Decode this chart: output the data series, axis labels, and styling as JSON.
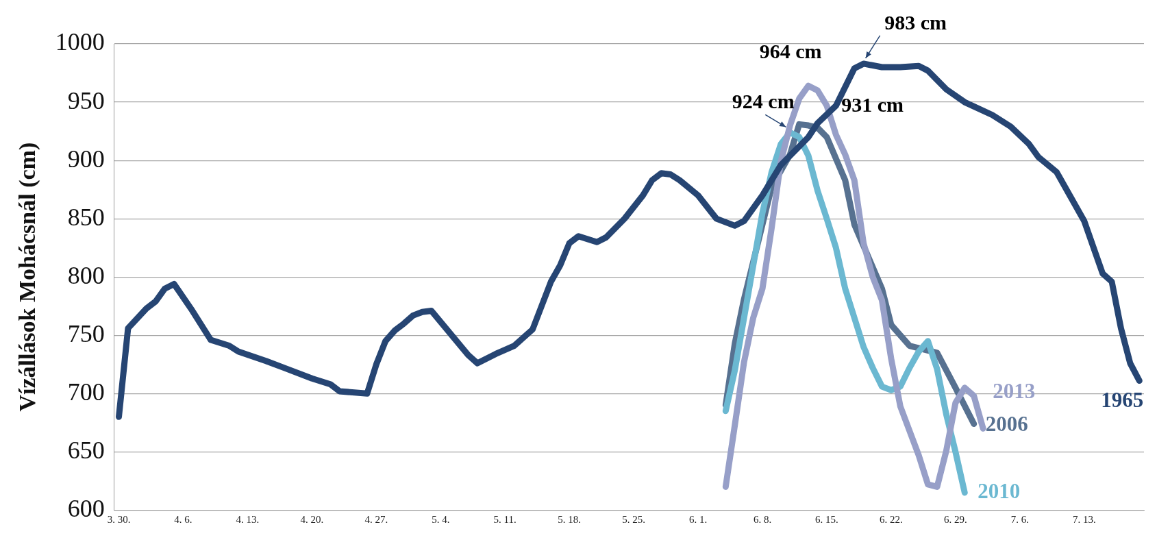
{
  "chart_data": {
    "type": "line",
    "ylabel": "Vízállások Mohácsnál (cm)",
    "categories": [
      "3. 30.",
      null,
      null,
      null,
      null,
      null,
      null,
      "4. 6.",
      null,
      null,
      null,
      null,
      null,
      null,
      "4. 13.",
      null,
      null,
      null,
      null,
      null,
      null,
      "4. 20.",
      null,
      null,
      null,
      null,
      null,
      null,
      "4. 27.",
      null,
      null,
      null,
      null,
      null,
      null,
      "5. 4.",
      null,
      null,
      null,
      null,
      null,
      null,
      "5. 11.",
      null,
      null,
      null,
      null,
      null,
      null,
      "5. 18.",
      null,
      null,
      null,
      null,
      null,
      null,
      "5. 25.",
      null,
      null,
      null,
      null,
      null,
      null,
      "6. 1.",
      null,
      null,
      null,
      null,
      null,
      null,
      "6. 8.",
      null,
      null,
      null,
      null,
      null,
      null,
      "6. 15.",
      null,
      null,
      null,
      null,
      null,
      null,
      "6. 22.",
      null,
      null,
      null,
      null,
      null,
      null,
      "6. 29.",
      null,
      null,
      null,
      null,
      null,
      null,
      "7. 6.",
      null,
      null,
      null,
      null,
      null,
      null,
      "7. 13.",
      null,
      null,
      null,
      null,
      null,
      null
    ],
    "series": [
      {
        "name": "1965",
        "color": "#264573",
        "values": [
          680,
          756,
          null,
          773,
          779,
          790,
          794,
          null,
          771,
          null,
          746,
          null,
          741,
          736,
          null,
          null,
          728,
          null,
          722,
          null,
          null,
          713,
          null,
          708,
          702,
          null,
          null,
          700,
          725,
          745,
          754,
          760,
          767,
          770,
          771,
          null,
          752,
          null,
          733,
          726,
          null,
          734,
          null,
          741,
          null,
          755,
          null,
          796,
          810,
          829,
          835,
          null,
          830,
          834,
          null,
          850,
          null,
          870,
          883,
          889,
          888,
          883,
          null,
          870,
          null,
          850,
          null,
          844,
          848,
          null,
          870,
          null,
          896,
          null,
          null,
          920,
          932,
          null,
          947,
          null,
          979,
          983,
          null,
          980,
          null,
          980,
          null,
          981,
          977,
          null,
          961,
          null,
          950,
          null,
          null,
          939,
          null,
          929,
          null,
          914,
          903,
          null,
          890,
          null,
          null,
          848,
          null,
          803,
          796,
          756,
          726,
          711
        ]
      },
      {
        "name": "2013",
        "color": "#979fc8",
        "values": [
          null,
          null,
          null,
          null,
          null,
          null,
          null,
          null,
          null,
          null,
          null,
          null,
          null,
          null,
          null,
          null,
          null,
          null,
          null,
          null,
          null,
          null,
          null,
          null,
          null,
          null,
          null,
          null,
          null,
          null,
          null,
          null,
          null,
          null,
          null,
          null,
          null,
          null,
          null,
          null,
          null,
          null,
          null,
          null,
          null,
          null,
          null,
          null,
          null,
          null,
          null,
          null,
          null,
          null,
          null,
          null,
          null,
          null,
          null,
          null,
          null,
          null,
          null,
          null,
          null,
          null,
          620,
          673,
          727,
          765,
          790,
          842,
          899,
          930,
          953,
          964,
          960,
          947,
          922,
          905,
          883,
          829,
          800,
          780,
          730,
          689,
          668,
          647,
          622,
          620,
          651,
          692,
          705,
          698,
          670,
          null,
          null,
          null,
          null,
          null,
          null,
          null,
          null,
          null,
          null,
          null,
          null,
          null,
          null,
          null,
          null,
          null
        ]
      },
      {
        "name": "2010",
        "color": "#6bb8d1",
        "values": [
          null,
          null,
          null,
          null,
          null,
          null,
          null,
          null,
          null,
          null,
          null,
          null,
          null,
          null,
          null,
          null,
          null,
          null,
          null,
          null,
          null,
          null,
          null,
          null,
          null,
          null,
          null,
          null,
          null,
          null,
          null,
          null,
          null,
          null,
          null,
          null,
          null,
          null,
          null,
          null,
          null,
          null,
          null,
          null,
          null,
          null,
          null,
          null,
          null,
          null,
          null,
          null,
          null,
          null,
          null,
          null,
          null,
          null,
          null,
          null,
          null,
          null,
          null,
          null,
          null,
          null,
          685,
          720,
          765,
          810,
          855,
          890,
          914,
          924,
          920,
          904,
          874,
          850,
          825,
          790,
          765,
          740,
          722,
          706,
          703,
          706,
          722,
          736,
          745,
          721,
          682,
          650,
          615,
          null,
          null,
          null,
          null,
          null,
          null,
          null,
          null,
          null,
          null,
          null,
          null,
          null,
          null,
          null,
          null,
          null,
          null,
          null
        ]
      },
      {
        "name": "2006",
        "color": "#577190",
        "values": [
          null,
          null,
          null,
          null,
          null,
          null,
          null,
          null,
          null,
          null,
          null,
          null,
          null,
          null,
          null,
          null,
          null,
          null,
          null,
          null,
          null,
          null,
          null,
          null,
          null,
          null,
          null,
          null,
          null,
          null,
          null,
          null,
          null,
          null,
          null,
          null,
          null,
          null,
          null,
          null,
          null,
          null,
          null,
          null,
          null,
          null,
          null,
          null,
          null,
          null,
          null,
          null,
          null,
          null,
          null,
          null,
          null,
          null,
          null,
          null,
          null,
          null,
          null,
          null,
          null,
          null,
          690,
          743,
          781,
          813,
          845,
          877,
          null,
          905,
          931,
          930,
          928,
          920,
          null,
          883,
          845,
          null,
          null,
          790,
          759,
          null,
          741,
          null,
          null,
          735,
          null,
          705,
          null,
          674,
          null,
          null,
          null,
          null,
          null,
          null,
          null,
          null,
          null,
          null,
          null,
          null,
          null,
          null,
          null,
          null,
          null,
          null
        ]
      }
    ],
    "ylim": [
      600,
      1000
    ],
    "yticks": [
      600,
      650,
      700,
      750,
      800,
      850,
      900,
      950,
      1000
    ],
    "grid": "y",
    "legend": false,
    "marker": "none",
    "line_style": "solid",
    "annotations": [
      "983 cm",
      "964 cm",
      "924 cm",
      "931 cm"
    ]
  }
}
